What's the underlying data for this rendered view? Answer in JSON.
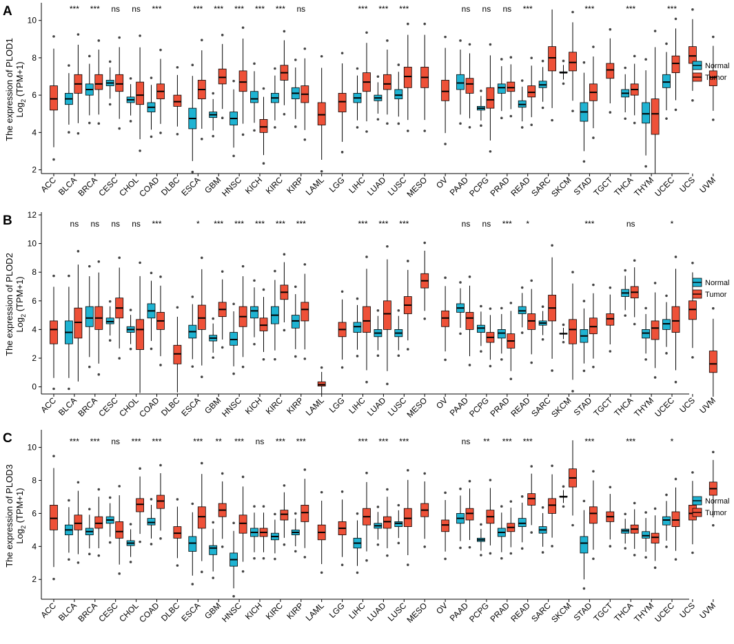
{
  "chart_data": [
    {
      "type": "boxplot",
      "panel_label": "A",
      "ylabel_line1": "The expression of PLOD1",
      "ylabel_line2_main": "Log",
      "ylabel_line2_sub": "2",
      "ylabel_line2_tail": " (TPM+1)",
      "ylim": [
        1.8,
        10.8
      ],
      "yticks": [
        2,
        4,
        6,
        8,
        10
      ],
      "legend": [
        {
          "name": "Normal",
          "color": "#1fb3d2"
        },
        {
          "name": "Tumor",
          "color": "#ee5138"
        }
      ],
      "categories": [
        "ACC",
        "BLCA",
        "BRCA",
        "CESC",
        "CHOL",
        "COAD",
        "DLBC",
        "ESCA",
        "GBM",
        "HNSC",
        "KICH",
        "KIRC",
        "KIRP",
        "LAML",
        "LGG",
        "LIHC",
        "LUAD",
        "LUSC",
        "MESO",
        "OV",
        "PAAD",
        "PCPG",
        "PRAD",
        "READ",
        "SARC",
        "SKCM",
        "STAD",
        "TGCT",
        "THCA",
        "THYM",
        "UCEC",
        "UCS",
        "UVM"
      ],
      "significance": [
        "",
        "***",
        "***",
        "ns",
        "ns",
        "***",
        "",
        "***",
        "***",
        "***",
        "***",
        "***",
        "ns",
        "",
        "",
        "***",
        "***",
        "***",
        "",
        "",
        "ns",
        "ns",
        "ns",
        "***",
        "",
        "",
        "***",
        "",
        "***",
        "",
        "***",
        "",
        ""
      ],
      "normal": [
        null,
        [
          5.5,
          5.8,
          6.1
        ],
        [
          6.0,
          6.3,
          6.6
        ],
        [
          6.5,
          6.65,
          6.8
        ],
        [
          5.6,
          5.75,
          5.9
        ],
        [
          5.1,
          5.35,
          5.6
        ],
        null,
        [
          4.2,
          4.75,
          5.3
        ],
        [
          4.8,
          4.95,
          5.1
        ],
        [
          4.4,
          4.75,
          5.1
        ],
        [
          5.6,
          5.8,
          6.2
        ],
        [
          5.6,
          5.85,
          6.1
        ],
        [
          5.8,
          6.1,
          6.4
        ],
        null,
        null,
        [
          5.6,
          5.85,
          6.1
        ],
        [
          5.7,
          5.85,
          6.0
        ],
        [
          5.8,
          6.0,
          6.3
        ],
        null,
        null,
        [
          6.3,
          6.65,
          7.1
        ],
        [
          5.2,
          5.3,
          5.4
        ],
        [
          6.1,
          6.4,
          6.6
        ],
        [
          5.35,
          5.5,
          5.7
        ],
        [
          6.4,
          6.55,
          6.75
        ],
        [
          7.2,
          7.2,
          7.25
        ],
        [
          4.6,
          5.1,
          5.6
        ],
        null,
        [
          5.9,
          6.1,
          6.3
        ],
        [
          4.5,
          5.0,
          5.6
        ],
        [
          6.4,
          6.7,
          7.1
        ],
        null,
        null
      ],
      "tumor": [
        [
          5.2,
          5.8,
          6.5
        ],
        [
          6.1,
          6.6,
          7.1
        ],
        [
          6.3,
          6.6,
          7.1
        ],
        [
          6.2,
          6.6,
          7.1
        ],
        [
          5.5,
          6.0,
          6.7
        ],
        [
          5.8,
          6.2,
          6.6
        ],
        [
          5.4,
          5.65,
          6.0
        ],
        [
          5.8,
          6.3,
          6.8
        ],
        [
          6.6,
          6.95,
          7.4
        ],
        [
          6.2,
          6.7,
          7.3
        ],
        [
          4.0,
          4.3,
          4.7
        ],
        [
          6.8,
          7.2,
          7.6
        ],
        [
          5.6,
          6.05,
          6.5
        ],
        [
          4.4,
          4.95,
          5.6
        ],
        [
          5.1,
          5.65,
          6.1
        ],
        [
          6.2,
          6.7,
          7.2
        ],
        [
          6.3,
          6.6,
          7.1
        ],
        [
          6.4,
          7.0,
          7.5
        ],
        [
          6.4,
          6.95,
          7.5
        ],
        [
          5.7,
          6.2,
          6.8
        ],
        [
          6.1,
          6.6,
          6.9
        ],
        [
          5.3,
          5.75,
          6.4
        ],
        [
          6.2,
          6.4,
          6.7
        ],
        [
          5.9,
          6.15,
          6.5
        ],
        [
          7.3,
          8.0,
          8.6
        ],
        [
          7.3,
          7.75,
          8.3
        ],
        [
          5.7,
          6.15,
          6.6
        ],
        [
          6.9,
          7.35,
          7.7
        ],
        [
          6.0,
          6.3,
          6.6
        ],
        [
          3.9,
          5.0,
          5.8
        ],
        [
          7.2,
          7.7,
          8.1
        ],
        [
          7.7,
          8.1,
          8.6
        ],
        [
          6.5,
          6.95,
          7.3
        ]
      ]
    },
    {
      "type": "boxplot",
      "panel_label": "B",
      "ylabel_line1": "The expression of PLOD2",
      "ylabel_line2_main": "Log",
      "ylabel_line2_sub": "2",
      "ylabel_line2_tail": " (TPM+1)",
      "ylim": [
        -0.5,
        12.0
      ],
      "yticks": [
        0,
        2,
        4,
        6,
        8,
        10,
        12
      ],
      "legend": [
        {
          "name": "Normal",
          "color": "#1fb3d2"
        },
        {
          "name": "Tumor",
          "color": "#ee5138"
        }
      ],
      "categories": [
        "ACC",
        "BLCA",
        "BRCA",
        "CESC",
        "CHOL",
        "COAD",
        "DLBC",
        "ESCA",
        "GBM",
        "HNSC",
        "KICH",
        "KIRC",
        "KIRP",
        "LAML",
        "LGG",
        "LIHC",
        "LUAD",
        "LUSC",
        "MESO",
        "OV",
        "PAAD",
        "PCPG",
        "PRAD",
        "READ",
        "SARC",
        "SKCM",
        "STAD",
        "TGCT",
        "THCA",
        "THYM",
        "UCEC",
        "UCS",
        "UVM"
      ],
      "significance": [
        "",
        "ns",
        "ns",
        "ns",
        "ns",
        "***",
        "",
        "*",
        "***",
        "***",
        "***",
        "***",
        "***",
        "",
        "",
        "***",
        "***",
        "***",
        "",
        "",
        "ns",
        "ns",
        "***",
        "*",
        "",
        "",
        "***",
        "",
        "ns",
        "",
        "*",
        "",
        ""
      ],
      "normal": [
        null,
        [
          3.0,
          3.8,
          4.6
        ],
        [
          4.2,
          4.8,
          5.6
        ],
        [
          4.4,
          4.55,
          4.8
        ],
        [
          3.8,
          4.0,
          4.2
        ],
        [
          4.8,
          5.3,
          5.8
        ],
        null,
        [
          3.4,
          3.85,
          4.3
        ],
        [
          3.2,
          3.4,
          3.6
        ],
        [
          2.9,
          3.3,
          3.8
        ],
        [
          4.8,
          5.3,
          5.6
        ],
        [
          4.4,
          5.0,
          5.6
        ],
        [
          4.1,
          4.6,
          5.0
        ],
        null,
        null,
        [
          3.8,
          4.2,
          4.5
        ],
        [
          3.5,
          3.75,
          4.0
        ],
        [
          3.5,
          3.75,
          4.0
        ],
        null,
        null,
        [
          5.2,
          5.5,
          5.8
        ],
        [
          3.8,
          4.1,
          4.3
        ],
        [
          3.4,
          3.75,
          4.0
        ],
        [
          5.1,
          5.3,
          5.6
        ],
        [
          4.3,
          4.45,
          4.6
        ],
        [
          3.7,
          3.7,
          3.75
        ],
        [
          3.1,
          3.55,
          4.0
        ],
        null,
        [
          6.3,
          6.55,
          6.8
        ],
        [
          3.4,
          3.75,
          4.0
        ],
        [
          4.0,
          4.4,
          4.7
        ]
      ],
      "tumor": [
        [
          3.0,
          4.0,
          4.6
        ],
        [
          3.4,
          4.5,
          5.5
        ],
        [
          4.0,
          4.8,
          5.6
        ],
        [
          4.8,
          5.5,
          6.2
        ],
        [
          2.6,
          4.0,
          4.7
        ],
        [
          4.0,
          4.6,
          5.2
        ],
        [
          1.6,
          2.3,
          2.9
        ],
        [
          4.0,
          4.8,
          5.7
        ],
        [
          4.9,
          5.4,
          5.9
        ],
        [
          4.2,
          4.9,
          5.6
        ],
        [
          3.9,
          4.3,
          4.8
        ],
        [
          6.1,
          6.6,
          7.1
        ],
        [
          4.6,
          5.4,
          5.9
        ],
        [
          0.05,
          0.15,
          0.35
        ],
        [
          3.5,
          4.0,
          4.5
        ],
        [
          3.8,
          4.6,
          5.6
        ],
        [
          4.0,
          5.1,
          6.0
        ],
        [
          5.1,
          5.7,
          6.3
        ],
        [
          6.9,
          7.4,
          7.9
        ],
        [
          4.2,
          4.8,
          5.3
        ],
        [
          4.0,
          4.8,
          5.2
        ],
        [
          3.1,
          3.45,
          3.8
        ],
        [
          2.7,
          3.2,
          3.7
        ],
        [
          4.0,
          4.6,
          5.1
        ],
        [
          4.6,
          5.5,
          6.4
        ],
        [
          3.0,
          4.0,
          4.7
        ],
        [
          3.7,
          4.2,
          4.8
        ],
        [
          4.3,
          4.75,
          5.1
        ],
        [
          6.2,
          6.6,
          7.0
        ],
        [
          3.3,
          4.1,
          4.6
        ],
        [
          3.8,
          4.6,
          5.6
        ],
        [
          4.7,
          5.4,
          6.0
        ],
        [
          1.0,
          1.6,
          2.5
        ]
      ]
    },
    {
      "type": "boxplot",
      "panel_label": "C",
      "ylabel_line1": "The expression of PLOD3",
      "ylabel_line2_main": "Log",
      "ylabel_line2_sub": "2",
      "ylabel_line2_tail": " (TPM+1)",
      "ylim": [
        0.8,
        10.9
      ],
      "yticks": [
        2,
        4,
        6,
        8,
        10
      ],
      "legend": [
        {
          "name": "Normal",
          "color": "#1fb3d2"
        },
        {
          "name": "Tumor",
          "color": "#ee5138"
        }
      ],
      "categories": [
        "ACC",
        "BLCA",
        "BRCA",
        "CESC",
        "CHOL",
        "COAD",
        "DLBC",
        "ESCA",
        "GBM",
        "HNSC",
        "KICH",
        "KIRC",
        "KIRP",
        "LAML",
        "LGG",
        "LIHC",
        "LUAD",
        "LUSC",
        "MESO",
        "OV",
        "PAAD",
        "PCPG",
        "PRAD",
        "READ",
        "SARC",
        "SKCM",
        "STAD",
        "TGCT",
        "THCA",
        "THYM",
        "UCEC",
        "UCS",
        "UVM"
      ],
      "significance": [
        "",
        "***",
        "***",
        "ns",
        "***",
        "***",
        "",
        "***",
        "**",
        "***",
        "ns",
        "***",
        "***",
        "",
        "",
        "***",
        "***",
        "***",
        "",
        "",
        "ns",
        "**",
        "***",
        "***",
        "",
        "",
        "***",
        "",
        "***",
        "",
        "*",
        "",
        ""
      ],
      "normal": [
        null,
        [
          4.7,
          5.0,
          5.3
        ],
        [
          4.7,
          4.9,
          5.1
        ],
        [
          5.4,
          5.6,
          5.8
        ],
        [
          4.05,
          4.2,
          4.35
        ],
        [
          5.3,
          5.45,
          5.7
        ],
        null,
        [
          3.7,
          4.2,
          4.6
        ],
        [
          3.5,
          3.9,
          4.05
        ],
        [
          2.8,
          3.2,
          3.6
        ],
        [
          4.6,
          4.85,
          5.1
        ],
        [
          4.4,
          4.6,
          4.8
        ],
        [
          4.7,
          4.85,
          5.0
        ],
        null,
        null,
        [
          3.9,
          4.2,
          4.5
        ],
        [
          5.1,
          5.25,
          5.4
        ],
        [
          5.2,
          5.4,
          5.5
        ],
        null,
        null,
        [
          5.4,
          5.7,
          6.0
        ],
        [
          4.3,
          4.4,
          4.5
        ],
        [
          4.6,
          4.85,
          5.1
        ],
        [
          5.2,
          5.4,
          5.7
        ],
        [
          4.8,
          5.0,
          5.2
        ],
        [
          7.0,
          7.0,
          7.05
        ],
        [
          3.6,
          4.2,
          4.6
        ],
        null,
        [
          4.8,
          4.95,
          5.05
        ],
        [
          4.5,
          4.65,
          4.9
        ],
        [
          5.3,
          5.6,
          5.8
        ]
      ],
      "tumor": [
        [
          5.0,
          5.7,
          6.5
        ],
        [
          5.0,
          5.4,
          5.9
        ],
        [
          5.1,
          5.4,
          5.8
        ],
        [
          4.5,
          4.9,
          5.5
        ],
        [
          6.1,
          6.55,
          6.9
        ],
        [
          6.3,
          6.75,
          7.1
        ],
        [
          4.5,
          4.8,
          5.2
        ],
        [
          5.1,
          5.8,
          6.4
        ],
        [
          5.8,
          6.2,
          6.6
        ],
        [
          4.8,
          5.4,
          5.9
        ],
        [
          4.6,
          4.85,
          5.1
        ],
        [
          5.6,
          5.95,
          6.2
        ],
        [
          5.5,
          6.05,
          6.5
        ],
        [
          4.4,
          4.85,
          5.3
        ],
        [
          4.7,
          5.1,
          5.5
        ],
        [
          5.3,
          5.8,
          6.3
        ],
        [
          5.1,
          5.5,
          5.8
        ],
        [
          5.2,
          5.7,
          6.3
        ],
        [
          5.8,
          6.2,
          6.6
        ],
        [
          4.9,
          5.3,
          5.6
        ],
        [
          5.6,
          6.0,
          6.3
        ],
        [
          5.4,
          5.8,
          6.2
        ],
        [
          4.9,
          5.15,
          5.4
        ],
        [
          6.5,
          6.9,
          7.2
        ],
        [
          6.0,
          6.5,
          6.9
        ],
        [
          7.6,
          8.15,
          8.7
        ],
        [
          5.4,
          6.0,
          6.4
        ],
        [
          5.5,
          5.8,
          6.1
        ],
        [
          4.8,
          5.05,
          5.3
        ],
        [
          4.2,
          4.55,
          4.8
        ],
        [
          5.2,
          5.6,
          6.1
        ],
        [
          5.6,
          6.0,
          6.5
        ],
        [
          7.1,
          7.5,
          7.9
        ]
      ]
    }
  ]
}
